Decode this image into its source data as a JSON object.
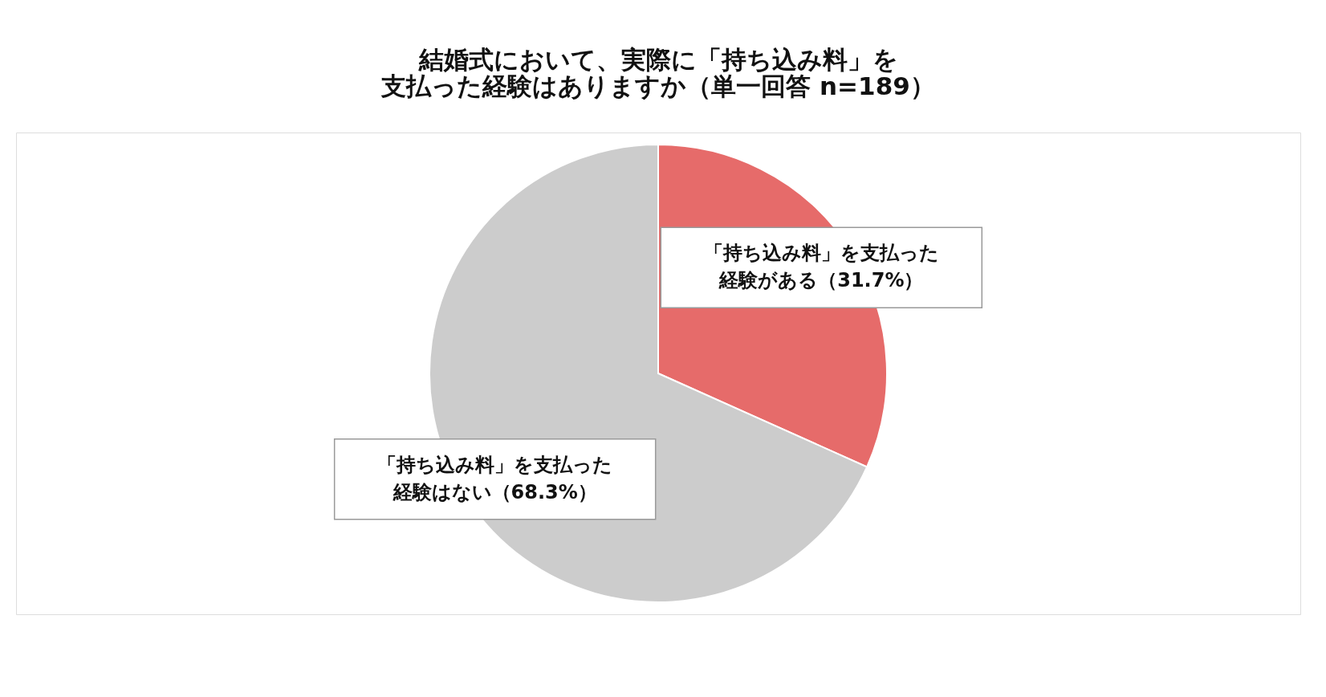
{
  "chart_data": {
    "type": "pie",
    "title": [
      "結婚式において、実際に「持ち込み料」を",
      "支払った経験はありますか（単一回答 n=189）"
    ],
    "categories": [
      "「持ち込み料」を支払った経験がある（31.7%）",
      "「持ち込み料」を支払った経験はない（68.3%）"
    ],
    "values": [
      31.7,
      68.3
    ],
    "colors": [
      "#e66b6a",
      "#cccccc"
    ],
    "legend": false
  }
}
